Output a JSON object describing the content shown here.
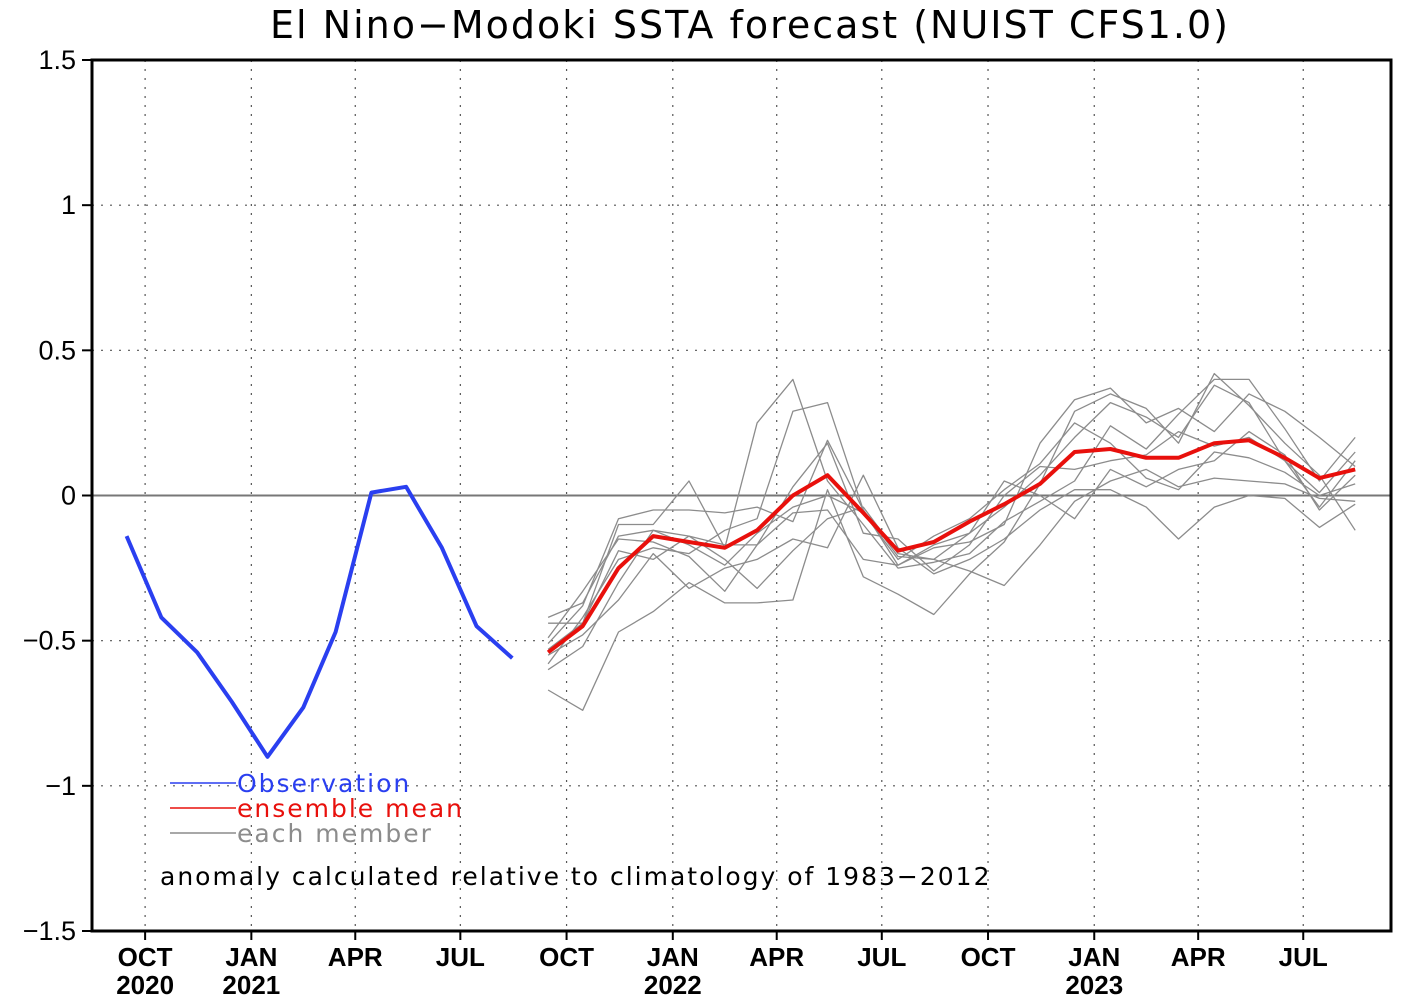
{
  "chart_data": {
    "type": "line",
    "title": "El Nino−Modoki SSTA forecast (NUIST CFS1.0)",
    "ylim": [
      -1.5,
      1.5
    ],
    "y_ticks": [
      {
        "value": 1.5,
        "label": "1.5"
      },
      {
        "value": 1,
        "label": "1"
      },
      {
        "value": 0.5,
        "label": "0.5"
      },
      {
        "value": 0,
        "label": "0"
      },
      {
        "value": -0.5,
        "label": "−0.5"
      },
      {
        "value": -1,
        "label": "−1"
      },
      {
        "value": -1.5,
        "label": "−1.5"
      }
    ],
    "xlim": [
      "2020-08-16",
      "2023-09-15"
    ],
    "x_ticks": [
      {
        "date": "2020-10",
        "month": "OCT",
        "year": "2020"
      },
      {
        "date": "2021-01",
        "month": "JAN",
        "year": "2021"
      },
      {
        "date": "2021-04",
        "month": "APR",
        "year": ""
      },
      {
        "date": "2021-07",
        "month": "JUL",
        "year": ""
      },
      {
        "date": "2021-10",
        "month": "OCT",
        "year": ""
      },
      {
        "date": "2022-01",
        "month": "JAN",
        "year": "2022"
      },
      {
        "date": "2022-04",
        "month": "APR",
        "year": ""
      },
      {
        "date": "2022-07",
        "month": "JUL",
        "year": ""
      },
      {
        "date": "2022-10",
        "month": "OCT",
        "year": ""
      },
      {
        "date": "2023-01",
        "month": "JAN",
        "year": "2023"
      },
      {
        "date": "2023-04",
        "month": "APR",
        "year": ""
      },
      {
        "date": "2023-07",
        "month": "JUL",
        "year": ""
      }
    ],
    "grid": true,
    "zero_line": true,
    "series": [
      {
        "name": "Observation",
        "color": "#2a3ff0",
        "x": [
          "2020-09",
          "2020-10",
          "2020-11",
          "2020-12",
          "2021-01",
          "2021-02",
          "2021-03",
          "2021-04",
          "2021-05",
          "2021-06",
          "2021-07",
          "2021-08"
        ],
        "values": [
          -0.14,
          -0.42,
          -0.54,
          -0.71,
          -0.9,
          -0.73,
          -0.47,
          0.01,
          0.03,
          -0.18,
          -0.45,
          -0.56
        ]
      },
      {
        "name": "ensemble mean",
        "color": "#e8100c",
        "x": [
          "2021-09",
          "2021-10",
          "2021-11",
          "2021-12",
          "2022-01",
          "2022-02",
          "2022-03",
          "2022-04",
          "2022-05",
          "2022-06",
          "2022-07",
          "2022-08",
          "2022-09",
          "2022-10",
          "2022-11",
          "2022-12",
          "2023-01",
          "2023-02",
          "2023-03",
          "2023-04",
          "2023-05",
          "2023-06",
          "2023-07",
          "2023-08"
        ],
        "values": [
          -0.54,
          -0.45,
          -0.25,
          -0.14,
          -0.16,
          -0.18,
          -0.12,
          0.0,
          0.07,
          -0.06,
          -0.19,
          -0.16,
          -0.09,
          -0.03,
          0.04,
          0.15,
          0.16,
          0.13,
          0.13,
          0.18,
          0.19,
          0.13,
          0.06,
          0.09
        ]
      },
      {
        "name": "each member",
        "color": "#8c8c8c",
        "x": [
          "2021-09",
          "2021-10",
          "2021-11",
          "2021-12",
          "2022-01",
          "2022-02",
          "2022-03",
          "2022-04",
          "2022-05",
          "2022-06",
          "2022-07",
          "2022-08",
          "2022-09",
          "2022-10",
          "2022-11",
          "2022-12",
          "2023-01",
          "2023-02",
          "2023-03",
          "2023-04",
          "2023-05",
          "2023-06",
          "2023-07",
          "2023-08"
        ],
        "members": [
          [
            -0.67,
            -0.74,
            -0.47,
            -0.4,
            -0.3,
            -0.37,
            -0.37,
            -0.36,
            0.02,
            -0.28,
            -0.34,
            -0.41,
            -0.27,
            -0.16,
            0.04,
            0.29,
            0.35,
            0.3,
            0.18,
            0.42,
            0.31,
            0.18,
            0.07,
            -0.12
          ],
          [
            -0.44,
            -0.44,
            -0.1,
            -0.1,
            0.05,
            -0.18,
            0.25,
            0.4,
            0.05,
            -0.1,
            -0.25,
            -0.23,
            -0.2,
            -0.09,
            -0.02,
            0.05,
            0.24,
            0.16,
            0.28,
            0.4,
            0.4,
            0.23,
            0.05,
            0.2
          ],
          [
            -0.58,
            -0.42,
            -0.22,
            -0.18,
            -0.2,
            -0.12,
            -0.08,
            0.29,
            0.32,
            -0.05,
            -0.24,
            -0.18,
            -0.16,
            -0.1,
            0.18,
            0.33,
            0.37,
            0.25,
            0.3,
            0.22,
            0.35,
            0.29,
            0.2,
            0.1
          ],
          [
            -0.51,
            -0.38,
            -0.08,
            -0.05,
            -0.05,
            -0.06,
            -0.04,
            -0.09,
            0.19,
            -0.05,
            -0.21,
            -0.22,
            -0.13,
            -0.04,
            0.07,
            0.2,
            0.32,
            0.27,
            0.2,
            0.38,
            0.32,
            0.12,
            0.01,
            0.15
          ],
          [
            -0.6,
            -0.52,
            -0.3,
            -0.12,
            -0.17,
            -0.24,
            -0.13,
            -0.04,
            0.0,
            -0.06,
            -0.22,
            -0.14,
            -0.08,
            0.02,
            0.11,
            0.25,
            0.18,
            0.06,
            0.02,
            0.15,
            0.13,
            0.08,
            0.0,
            0.04
          ],
          [
            -0.49,
            -0.33,
            -0.15,
            -0.16,
            -0.21,
            -0.33,
            -0.17,
            -0.06,
            -0.05,
            -0.22,
            -0.24,
            -0.17,
            -0.13,
            0.05,
            0.0,
            -0.08,
            0.09,
            0.03,
            0.09,
            0.12,
            0.22,
            0.14,
            -0.05,
            0.07
          ],
          [
            -0.55,
            -0.48,
            -0.36,
            -0.2,
            -0.32,
            -0.25,
            -0.22,
            -0.15,
            -0.18,
            0.07,
            -0.18,
            -0.27,
            -0.22,
            -0.15,
            -0.05,
            0.02,
            0.02,
            -0.04,
            -0.15,
            -0.04,
            0.0,
            -0.01,
            -0.11,
            -0.03
          ],
          [
            -0.53,
            -0.44,
            -0.19,
            -0.22,
            -0.14,
            -0.22,
            -0.32,
            -0.19,
            -0.08,
            -0.04,
            -0.2,
            -0.22,
            -0.26,
            -0.31,
            -0.17,
            -0.02,
            0.05,
            0.09,
            0.03,
            0.06,
            0.05,
            0.04,
            -0.01,
            -0.02
          ],
          [
            -0.42,
            -0.37,
            -0.14,
            -0.12,
            -0.14,
            -0.17,
            -0.17,
            0.03,
            0.18,
            -0.13,
            -0.15,
            -0.26,
            -0.17,
            0.0,
            0.1,
            0.09,
            0.12,
            0.14,
            0.22,
            0.17,
            0.2,
            0.12,
            -0.04,
            0.12
          ]
        ]
      }
    ],
    "legend": [
      {
        "label": "Observation",
        "color": "#2a3ff0"
      },
      {
        "label": "ensemble mean",
        "color": "#e8100c"
      },
      {
        "label": "each member",
        "color": "#8c8c8c"
      }
    ],
    "legend_placement": "bottom-left",
    "annotation": "anomaly calculated relative to climatology of 1983−2012"
  }
}
